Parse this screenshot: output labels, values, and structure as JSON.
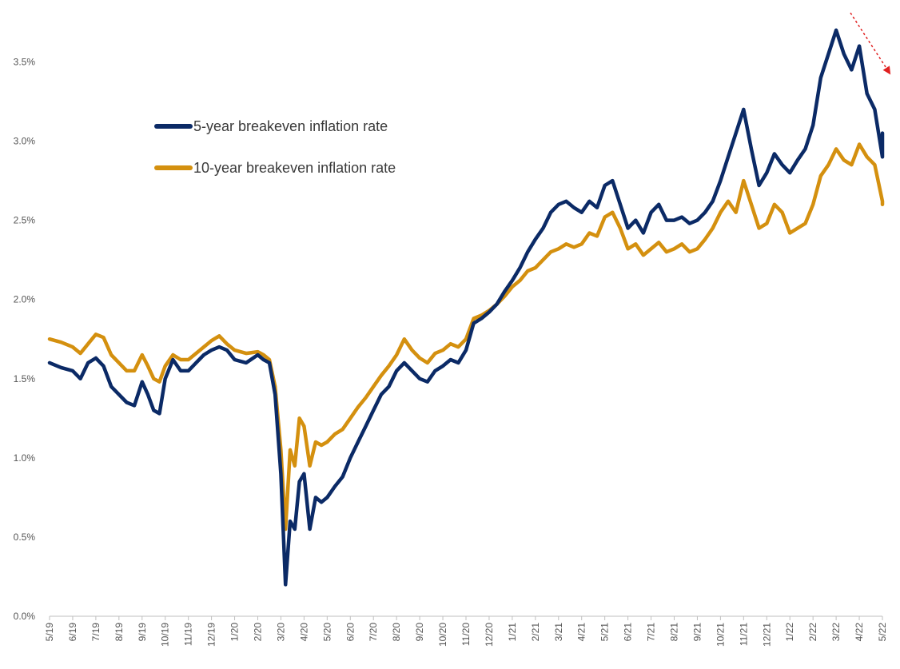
{
  "chart_data": {
    "type": "line",
    "title": "",
    "xlabel": "",
    "ylabel": "",
    "ylim": [
      0,
      3.8
    ],
    "y_ticks": [
      0.0,
      0.5,
      1.0,
      1.5,
      2.0,
      2.5,
      3.0,
      3.5
    ],
    "y_tick_labels": [
      "0.0%",
      "0.5%",
      "1.0%",
      "1.5%",
      "2.0%",
      "2.5%",
      "3.0%",
      "3.5%"
    ],
    "x_tick_labels": [
      "5/19",
      "6/19",
      "7/19",
      "8/19",
      "9/19",
      "10/19",
      "11/19",
      "12/19",
      "1/20",
      "2/20",
      "3/20",
      "4/20",
      "5/20",
      "6/20",
      "7/20",
      "8/20",
      "9/20",
      "10/20",
      "11/20",
      "12/20",
      "1/21",
      "2/21",
      "3/21",
      "4/21",
      "5/21",
      "6/21",
      "7/21",
      "8/21",
      "9/21",
      "10/21",
      "11/21",
      "12/21",
      "1/22",
      "2/22",
      "3/22",
      "4/22",
      "5/22"
    ],
    "grid": false,
    "legend_position": "upper-left",
    "annotation": "red dashed downward arrow at top-right",
    "colors": {
      "five_year": "#0b2a66",
      "ten_year": "#d4900f",
      "arrow": "#e02020",
      "axis": "#bfbfbf"
    },
    "series": [
      {
        "name": "5-year breakeven inflation rate",
        "color": "#0b2a66",
        "points": [
          [
            "5/19",
            1.6
          ],
          [
            "5/19",
            1.57
          ],
          [
            "6/19",
            1.55
          ],
          [
            "6/19",
            1.5
          ],
          [
            "6/19",
            1.6
          ],
          [
            "7/19",
            1.63
          ],
          [
            "7/19",
            1.58
          ],
          [
            "7/19",
            1.45
          ],
          [
            "8/19",
            1.4
          ],
          [
            "8/19",
            1.35
          ],
          [
            "8/19",
            1.33
          ],
          [
            "9/19",
            1.48
          ],
          [
            "9/19",
            1.4
          ],
          [
            "9/19",
            1.3
          ],
          [
            "9/19",
            1.28
          ],
          [
            "10/19",
            1.5
          ],
          [
            "10/19",
            1.62
          ],
          [
            "10/19",
            1.55
          ],
          [
            "11/19",
            1.55
          ],
          [
            "11/19",
            1.6
          ],
          [
            "11/19",
            1.65
          ],
          [
            "12/19",
            1.68
          ],
          [
            "12/19",
            1.7
          ],
          [
            "12/19",
            1.68
          ],
          [
            "1/20",
            1.62
          ],
          [
            "1/20",
            1.6
          ],
          [
            "2/20",
            1.65
          ],
          [
            "2/20",
            1.62
          ],
          [
            "2/20",
            1.6
          ],
          [
            "2/20",
            1.4
          ],
          [
            "3/20",
            0.9
          ],
          [
            "3/20",
            0.2
          ],
          [
            "3/20",
            0.6
          ],
          [
            "3/20",
            0.55
          ],
          [
            "3/20",
            0.85
          ],
          [
            "4/20",
            0.9
          ],
          [
            "4/20",
            0.55
          ],
          [
            "4/20",
            0.75
          ],
          [
            "4/20",
            0.72
          ],
          [
            "5/20",
            0.75
          ],
          [
            "5/20",
            0.82
          ],
          [
            "5/20",
            0.88
          ],
          [
            "6/20",
            1.0
          ],
          [
            "6/20",
            1.1
          ],
          [
            "6/20",
            1.2
          ],
          [
            "7/20",
            1.3
          ],
          [
            "7/20",
            1.4
          ],
          [
            "7/20",
            1.45
          ],
          [
            "8/20",
            1.55
          ],
          [
            "8/20",
            1.6
          ],
          [
            "8/20",
            1.55
          ],
          [
            "9/20",
            1.5
          ],
          [
            "9/20",
            1.48
          ],
          [
            "9/20",
            1.55
          ],
          [
            "10/20",
            1.58
          ],
          [
            "10/20",
            1.62
          ],
          [
            "10/20",
            1.6
          ],
          [
            "11/20",
            1.68
          ],
          [
            "11/20",
            1.85
          ],
          [
            "11/20",
            1.88
          ],
          [
            "12/20",
            1.92
          ],
          [
            "12/20",
            1.97
          ],
          [
            "12/20",
            2.05
          ],
          [
            "1/21",
            2.12
          ],
          [
            "1/21",
            2.2
          ],
          [
            "1/21",
            2.3
          ],
          [
            "2/21",
            2.38
          ],
          [
            "2/21",
            2.45
          ],
          [
            "2/21",
            2.55
          ],
          [
            "3/21",
            2.6
          ],
          [
            "3/21",
            2.62
          ],
          [
            "3/21",
            2.58
          ],
          [
            "4/21",
            2.55
          ],
          [
            "4/21",
            2.62
          ],
          [
            "4/21",
            2.58
          ],
          [
            "5/21",
            2.72
          ],
          [
            "5/21",
            2.75
          ],
          [
            "5/21",
            2.6
          ],
          [
            "6/21",
            2.45
          ],
          [
            "6/21",
            2.5
          ],
          [
            "6/21",
            2.42
          ],
          [
            "7/21",
            2.55
          ],
          [
            "7/21",
            2.6
          ],
          [
            "7/21",
            2.5
          ],
          [
            "8/21",
            2.5
          ],
          [
            "8/21",
            2.52
          ],
          [
            "8/21",
            2.48
          ],
          [
            "9/21",
            2.5
          ],
          [
            "9/21",
            2.55
          ],
          [
            "9/21",
            2.62
          ],
          [
            "10/21",
            2.75
          ],
          [
            "10/21",
            2.9
          ],
          [
            "10/21",
            3.05
          ],
          [
            "11/21",
            3.2
          ],
          [
            "11/21",
            2.95
          ],
          [
            "11/21",
            2.72
          ],
          [
            "12/21",
            2.8
          ],
          [
            "12/21",
            2.92
          ],
          [
            "12/21",
            2.85
          ],
          [
            "1/22",
            2.8
          ],
          [
            "1/22",
            2.88
          ],
          [
            "1/22",
            2.95
          ],
          [
            "2/22",
            3.1
          ],
          [
            "2/22",
            3.4
          ],
          [
            "2/22",
            3.55
          ],
          [
            "3/22",
            3.7
          ],
          [
            "3/22",
            3.55
          ],
          [
            "3/22",
            3.45
          ],
          [
            "4/22",
            3.6
          ],
          [
            "4/22",
            3.3
          ],
          [
            "4/22",
            3.2
          ],
          [
            "5/22",
            2.9
          ],
          [
            "5/22",
            3.05
          ],
          [
            "5/22",
            2.95
          ]
        ]
      },
      {
        "name": "10-year breakeven inflation rate",
        "color": "#d4900f",
        "points": [
          [
            "5/19",
            1.75
          ],
          [
            "5/19",
            1.73
          ],
          [
            "6/19",
            1.7
          ],
          [
            "6/19",
            1.66
          ],
          [
            "6/19",
            1.72
          ],
          [
            "7/19",
            1.78
          ],
          [
            "7/19",
            1.76
          ],
          [
            "7/19",
            1.65
          ],
          [
            "8/19",
            1.6
          ],
          [
            "8/19",
            1.55
          ],
          [
            "8/19",
            1.55
          ],
          [
            "9/19",
            1.65
          ],
          [
            "9/19",
            1.58
          ],
          [
            "9/19",
            1.5
          ],
          [
            "9/19",
            1.48
          ],
          [
            "10/19",
            1.58
          ],
          [
            "10/19",
            1.65
          ],
          [
            "10/19",
            1.62
          ],
          [
            "11/19",
            1.62
          ],
          [
            "11/19",
            1.66
          ],
          [
            "11/19",
            1.7
          ],
          [
            "12/19",
            1.74
          ],
          [
            "12/19",
            1.77
          ],
          [
            "12/19",
            1.72
          ],
          [
            "1/20",
            1.68
          ],
          [
            "1/20",
            1.66
          ],
          [
            "2/20",
            1.67
          ],
          [
            "2/20",
            1.65
          ],
          [
            "2/20",
            1.62
          ],
          [
            "2/20",
            1.45
          ],
          [
            "3/20",
            1.05
          ],
          [
            "3/20",
            0.55
          ],
          [
            "3/20",
            1.05
          ],
          [
            "3/20",
            0.95
          ],
          [
            "3/20",
            1.25
          ],
          [
            "4/20",
            1.2
          ],
          [
            "4/20",
            0.95
          ],
          [
            "4/20",
            1.1
          ],
          [
            "4/20",
            1.08
          ],
          [
            "5/20",
            1.1
          ],
          [
            "5/20",
            1.15
          ],
          [
            "5/20",
            1.18
          ],
          [
            "6/20",
            1.25
          ],
          [
            "6/20",
            1.32
          ],
          [
            "6/20",
            1.38
          ],
          [
            "7/20",
            1.45
          ],
          [
            "7/20",
            1.52
          ],
          [
            "7/20",
            1.58
          ],
          [
            "8/20",
            1.65
          ],
          [
            "8/20",
            1.75
          ],
          [
            "8/20",
            1.68
          ],
          [
            "9/20",
            1.63
          ],
          [
            "9/20",
            1.6
          ],
          [
            "9/20",
            1.66
          ],
          [
            "10/20",
            1.68
          ],
          [
            "10/20",
            1.72
          ],
          [
            "10/20",
            1.7
          ],
          [
            "11/20",
            1.75
          ],
          [
            "11/20",
            1.88
          ],
          [
            "11/20",
            1.9
          ],
          [
            "12/20",
            1.93
          ],
          [
            "12/20",
            1.97
          ],
          [
            "12/20",
            2.02
          ],
          [
            "1/21",
            2.08
          ],
          [
            "1/21",
            2.12
          ],
          [
            "1/21",
            2.18
          ],
          [
            "2/21",
            2.2
          ],
          [
            "2/21",
            2.25
          ],
          [
            "2/21",
            2.3
          ],
          [
            "3/21",
            2.32
          ],
          [
            "3/21",
            2.35
          ],
          [
            "3/21",
            2.33
          ],
          [
            "4/21",
            2.35
          ],
          [
            "4/21",
            2.42
          ],
          [
            "4/21",
            2.4
          ],
          [
            "5/21",
            2.52
          ],
          [
            "5/21",
            2.55
          ],
          [
            "5/21",
            2.45
          ],
          [
            "6/21",
            2.32
          ],
          [
            "6/21",
            2.35
          ],
          [
            "6/21",
            2.28
          ],
          [
            "7/21",
            2.32
          ],
          [
            "7/21",
            2.36
          ],
          [
            "7/21",
            2.3
          ],
          [
            "8/21",
            2.32
          ],
          [
            "8/21",
            2.35
          ],
          [
            "8/21",
            2.3
          ],
          [
            "9/21",
            2.32
          ],
          [
            "9/21",
            2.38
          ],
          [
            "9/21",
            2.45
          ],
          [
            "10/21",
            2.55
          ],
          [
            "10/21",
            2.62
          ],
          [
            "10/21",
            2.55
          ],
          [
            "11/21",
            2.75
          ],
          [
            "11/21",
            2.6
          ],
          [
            "11/21",
            2.45
          ],
          [
            "12/21",
            2.48
          ],
          [
            "12/21",
            2.6
          ],
          [
            "12/21",
            2.55
          ],
          [
            "1/22",
            2.42
          ],
          [
            "1/22",
            2.45
          ],
          [
            "1/22",
            2.48
          ],
          [
            "2/22",
            2.6
          ],
          [
            "2/22",
            2.78
          ],
          [
            "2/22",
            2.85
          ],
          [
            "3/22",
            2.95
          ],
          [
            "3/22",
            2.88
          ],
          [
            "3/22",
            2.85
          ],
          [
            "4/22",
            2.98
          ],
          [
            "4/22",
            2.9
          ],
          [
            "4/22",
            2.85
          ],
          [
            "5/22",
            2.62
          ],
          [
            "5/22",
            2.62
          ],
          [
            "5/22",
            2.6
          ]
        ]
      }
    ]
  }
}
